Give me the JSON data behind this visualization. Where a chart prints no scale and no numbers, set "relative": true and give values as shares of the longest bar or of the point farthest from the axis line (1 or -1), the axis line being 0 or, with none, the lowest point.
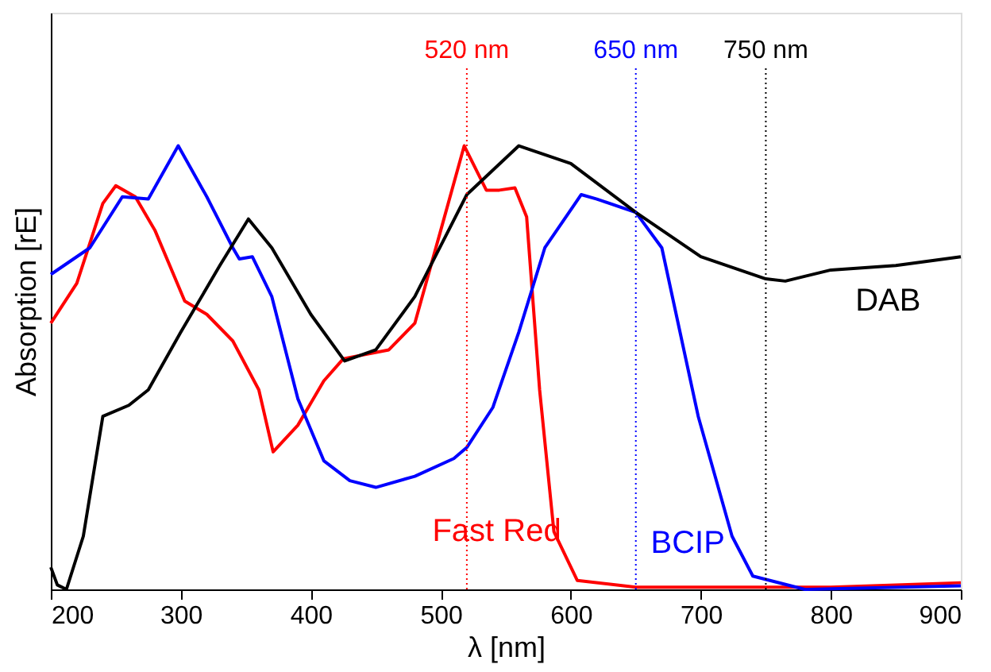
{
  "chart_data": {
    "type": "line",
    "relative": true,
    "xlabel": "λ [nm]",
    "ylabel": "Absorption [rE]",
    "xlim": [
      200,
      900
    ],
    "xticks": [
      200,
      300,
      400,
      500,
      600,
      700,
      800,
      900
    ],
    "grid": false,
    "marker": "none",
    "line_style": "solid",
    "series": [
      {
        "name": "Fast Red",
        "color": "#ff0000",
        "x": [
          200,
          220,
          240,
          250,
          265,
          280,
          303,
          320,
          340,
          360,
          371,
          390,
          410,
          425,
          460,
          480,
          500,
          518,
          535,
          545,
          557,
          566,
          576,
          587,
          605,
          650,
          800,
          900
        ],
        "values": [
          0.6,
          0.69,
          0.87,
          0.91,
          0.885,
          0.81,
          0.65,
          0.62,
          0.56,
          0.45,
          0.31,
          0.37,
          0.47,
          0.52,
          0.54,
          0.6,
          0.81,
          1.0,
          0.9,
          0.9,
          0.905,
          0.84,
          0.45,
          0.13,
          0.02,
          0.005,
          0.005,
          0.015
        ]
      },
      {
        "name": "BCIP",
        "color": "#0000ff",
        "x": [
          200,
          230,
          255,
          275,
          298,
          320,
          340,
          345,
          355,
          370,
          390,
          410,
          430,
          450,
          480,
          510,
          520,
          540,
          560,
          580,
          608,
          620,
          650,
          670,
          698,
          724,
          740,
          780,
          900
        ],
        "values": [
          0.71,
          0.77,
          0.885,
          0.88,
          1.0,
          0.885,
          0.77,
          0.745,
          0.75,
          0.66,
          0.43,
          0.29,
          0.245,
          0.23,
          0.255,
          0.295,
          0.32,
          0.41,
          0.58,
          0.77,
          0.89,
          0.88,
          0.85,
          0.77,
          0.39,
          0.12,
          0.03,
          0.0,
          0.008
        ]
      },
      {
        "name": "DAB",
        "color": "#000000",
        "x": [
          200,
          205,
          212,
          225,
          240,
          260,
          275,
          300,
          330,
          352,
          370,
          400,
          426,
          450,
          480,
          520,
          560,
          600,
          650,
          700,
          750,
          765,
          800,
          850,
          900
        ],
        "values": [
          0.05,
          0.01,
          0.0,
          0.12,
          0.39,
          0.415,
          0.45,
          0.58,
          0.73,
          0.835,
          0.77,
          0.62,
          0.515,
          0.54,
          0.66,
          0.89,
          1.0,
          0.96,
          0.85,
          0.75,
          0.7,
          0.695,
          0.72,
          0.73,
          0.75
        ]
      }
    ],
    "ref_lines": [
      {
        "axis": "x",
        "value": 520,
        "label": "520 nm",
        "color": "#ff0000",
        "line_style": "dotted"
      },
      {
        "axis": "x",
        "value": 650,
        "label": "650 nm",
        "color": "#0000ff",
        "line_style": "dotted"
      },
      {
        "axis": "x",
        "value": 750,
        "label": "750 nm",
        "color": "#000000",
        "line_style": "dotted"
      }
    ]
  }
}
